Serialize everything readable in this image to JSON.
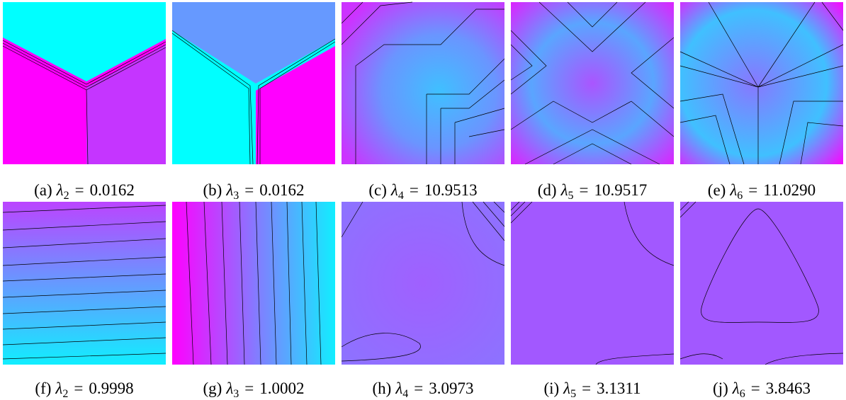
{
  "figure": {
    "panels": [
      {
        "tag": "(a)",
        "symbol": "λ",
        "sub": "2",
        "relation": "=",
        "value": "0.0162"
      },
      {
        "tag": "(b)",
        "symbol": "λ",
        "sub": "3",
        "relation": "=",
        "value": "0.0162"
      },
      {
        "tag": "(c)",
        "symbol": "λ",
        "sub": "4",
        "relation": "=",
        "value": "10.9513"
      },
      {
        "tag": "(d)",
        "symbol": "λ",
        "sub": "5",
        "relation": "=",
        "value": "10.9517"
      },
      {
        "tag": "(e)",
        "symbol": "λ",
        "sub": "6",
        "relation": "=",
        "value": "11.0290"
      },
      {
        "tag": "(f)",
        "symbol": "λ",
        "sub": "2",
        "relation": "=",
        "value": "0.9998"
      },
      {
        "tag": "(g)",
        "symbol": "λ",
        "sub": "3",
        "relation": "=",
        "value": "1.0002"
      },
      {
        "tag": "(h)",
        "symbol": "λ",
        "sub": "4",
        "relation": "=",
        "value": "3.0973"
      },
      {
        "tag": "(i)",
        "symbol": "λ",
        "sub": "5",
        "relation": "=",
        "value": "3.1311"
      },
      {
        "tag": "(j)",
        "symbol": "λ",
        "sub": "6",
        "relation": "=",
        "value": "3.8463"
      }
    ]
  }
}
